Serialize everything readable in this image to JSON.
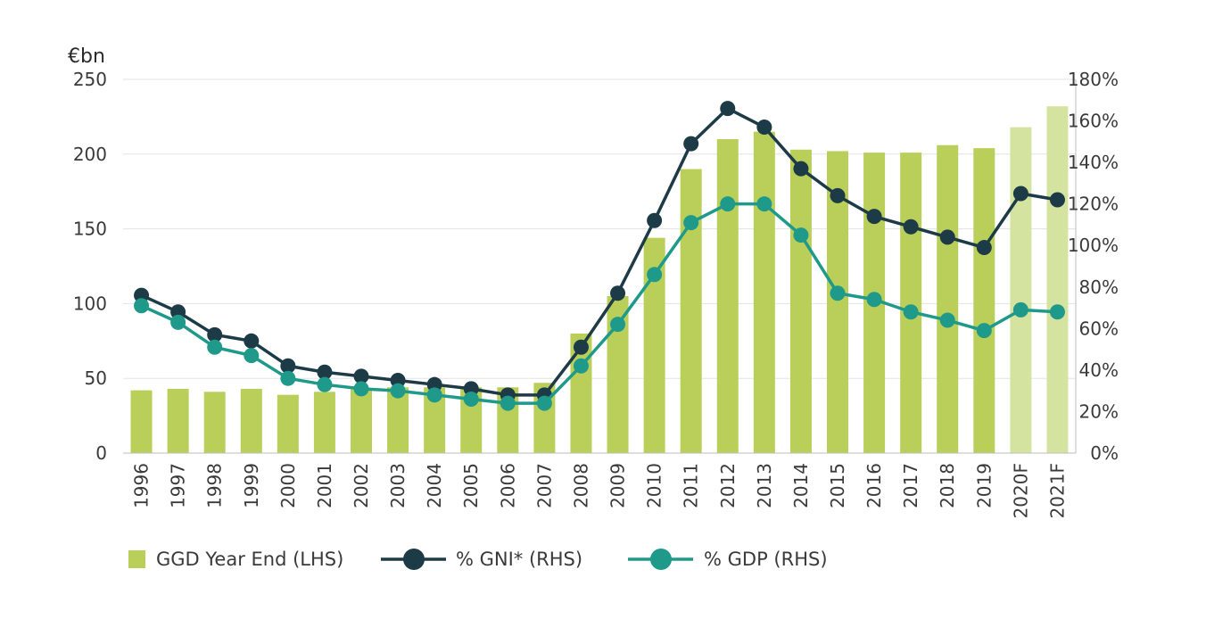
{
  "chart_data": {
    "type": "bar+line",
    "title": "",
    "left_axis_unit": "€bn",
    "ylim_left": [
      0,
      250
    ],
    "yticks_left": [
      "0",
      "50",
      "100",
      "150",
      "200",
      "250"
    ],
    "ylim_right": [
      0,
      180
    ],
    "yticks_right": [
      "0%",
      "20%",
      "40%",
      "60%",
      "80%",
      "100%",
      "120%",
      "140%",
      "160%",
      "180%"
    ],
    "categories": [
      "1996",
      "1997",
      "1998",
      "1999",
      "2000",
      "2001",
      "2002",
      "2003",
      "2004",
      "2005",
      "2006",
      "2007",
      "2008",
      "2009",
      "2010",
      "2011",
      "2012",
      "2013",
      "2014",
      "2015",
      "2016",
      "2017",
      "2018",
      "2019",
      "2020F",
      "2021F"
    ],
    "forecast_categories": [
      "2020F",
      "2021F"
    ],
    "grid": true,
    "legend_position": "bottom",
    "series": [
      {
        "name": "GGD Year End (LHS)",
        "type": "bar",
        "axis": "left",
        "color": "#b9cf59",
        "forecast_color": "#d5e3a0",
        "values": [
          42,
          43,
          41,
          43,
          39,
          41,
          43,
          44,
          44,
          44,
          44,
          47,
          80,
          105,
          144,
          190,
          210,
          215,
          203,
          202,
          201,
          201,
          206,
          204,
          218,
          232
        ]
      },
      {
        "name": "% GNI* (RHS)",
        "type": "line",
        "axis": "right",
        "color": "#1d3a47",
        "values": [
          76,
          68,
          57,
          54,
          42,
          39,
          37,
          35,
          33,
          31,
          28,
          28,
          51,
          77,
          112,
          149,
          166,
          157,
          137,
          124,
          114,
          109,
          104,
          99,
          125,
          122
        ]
      },
      {
        "name": "% GDP (RHS)",
        "type": "line",
        "axis": "right",
        "color": "#1f9a8a",
        "values": [
          71,
          63,
          51,
          47,
          36,
          33,
          31,
          30,
          28,
          26,
          24,
          24,
          42,
          62,
          86,
          111,
          120,
          120,
          105,
          77,
          74,
          68,
          64,
          59,
          69,
          68
        ]
      }
    ]
  }
}
